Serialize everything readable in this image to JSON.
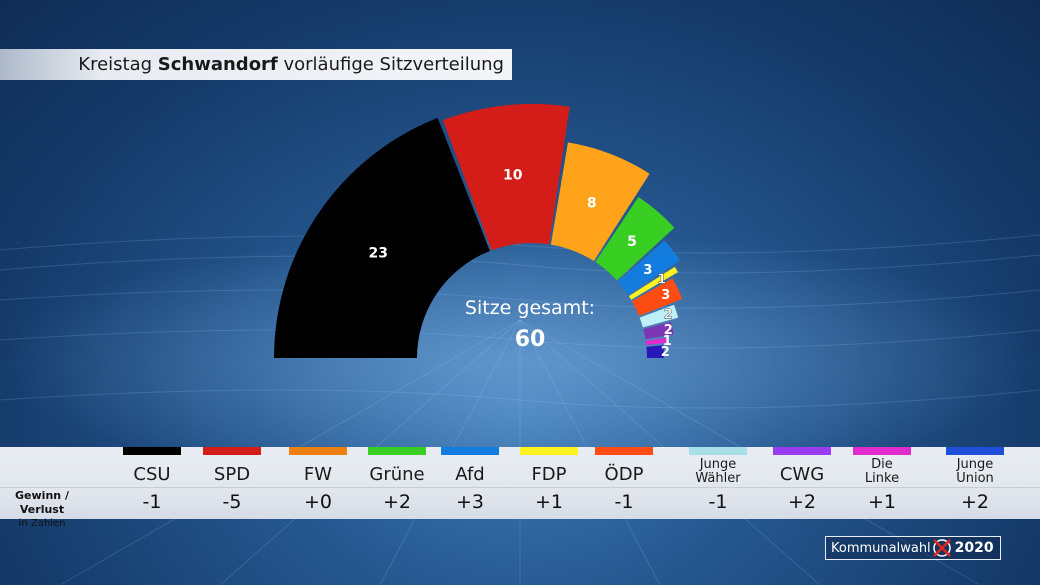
{
  "header": {
    "title_prefix": "Kreistag ",
    "title_bold": "Schwandorf",
    "title_suffix": " vorläufige Sitzverteilung"
  },
  "center": {
    "label": "Sitze gesamt:",
    "total": "60"
  },
  "chart_data": {
    "type": "pie",
    "subtype": "semicircle-parliament",
    "title": "Kreistag Schwandorf vorläufige Sitzverteilung",
    "total_seats": 60,
    "slices": [
      {
        "name": "CSU",
        "seats": 23,
        "color": "#000000"
      },
      {
        "name": "SPD",
        "seats": 10,
        "color": "#d41c18"
      },
      {
        "name": "FW",
        "seats": 8,
        "color": "#ffa31a"
      },
      {
        "name": "Grüne",
        "seats": 5,
        "color": "#39cf22"
      },
      {
        "name": "Afd",
        "seats": 3,
        "color": "#137ddf"
      },
      {
        "name": "FDP",
        "seats": 1,
        "color": "#fff31e"
      },
      {
        "name": "ÖDP",
        "seats": 3,
        "color": "#ff4c12"
      },
      {
        "name": "Junge Wähler",
        "seats": 2,
        "color": "#bfeff8"
      },
      {
        "name": "CWG",
        "seats": 2,
        "color": "#7e35b3"
      },
      {
        "name": "Die Linke",
        "seats": 1,
        "color": "#e02ccf"
      },
      {
        "name": "Junge Union",
        "seats": 2,
        "color": "#2818b8"
      }
    ]
  },
  "table": {
    "row_label_main": "Gewinn / Verlust",
    "row_label_sub": "in Zahlen",
    "parties": [
      {
        "name": "CSU",
        "line1": "CSU",
        "line2": "",
        "color": "#000000",
        "change": "-1"
      },
      {
        "name": "SPD",
        "line1": "SPD",
        "line2": "",
        "color": "#d41c18",
        "change": "-5"
      },
      {
        "name": "FW",
        "line1": "FW",
        "line2": "",
        "color": "#f07f12",
        "change": "+0"
      },
      {
        "name": "Grüne",
        "line1": "Grüne",
        "line2": "",
        "color": "#39cf22",
        "change": "+2"
      },
      {
        "name": "Afd",
        "line1": "Afd",
        "line2": "",
        "color": "#137ddf",
        "change": "+3"
      },
      {
        "name": "FDP",
        "line1": "FDP",
        "line2": "",
        "color": "#fff31e",
        "change": "+1"
      },
      {
        "name": "ÖDP",
        "line1": "ÖDP",
        "line2": "",
        "color": "#ff4c12",
        "change": "-1"
      },
      {
        "name": "Junge Wähler",
        "line1": "Junge",
        "line2": "Wähler",
        "color": "#a9dfe6",
        "change": "-1"
      },
      {
        "name": "CWG",
        "line1": "CWG",
        "line2": "",
        "color": "#9b3cf0",
        "change": "+2"
      },
      {
        "name": "Die Linke",
        "line1": "Die",
        "line2": "Linke",
        "color": "#e02ccf",
        "change": "+1"
      },
      {
        "name": "Junge Union",
        "line1": "Junge",
        "line2": "Union",
        "color": "#1f4fd8",
        "change": "+2"
      }
    ]
  },
  "logo": {
    "word": "Kommunalwahl",
    "year": "2020"
  }
}
